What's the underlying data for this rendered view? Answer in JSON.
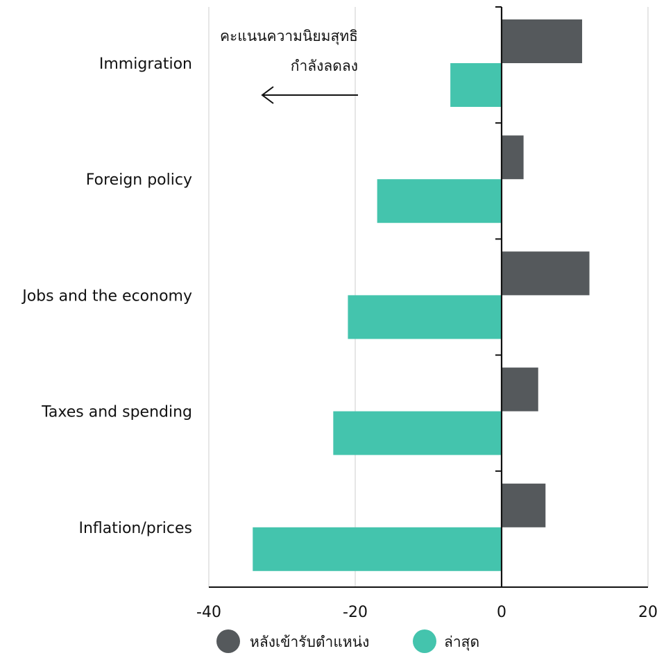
{
  "chart_data": {
    "type": "bar",
    "orientation": "horizontal",
    "categories": [
      "Immigration",
      "Foreign policy",
      "Jobs and the economy",
      "Taxes and spending",
      "Inflation/prices"
    ],
    "series": [
      {
        "name": "หลังเข้ารับตำแหน่ง",
        "values": [
          11,
          3,
          12,
          5,
          6
        ],
        "color": "#55595c"
      },
      {
        "name": "ล่าสุด",
        "values": [
          -7,
          -17,
          -21,
          -23,
          -34
        ],
        "color": "#44c4ad"
      }
    ],
    "xlim": [
      -40,
      20
    ],
    "xticks": [
      -40,
      -20,
      0,
      20
    ],
    "grid": "vertical",
    "legend_position": "bottom",
    "annotation": {
      "lines": [
        "คะแนนความนิยมสุทธิ",
        "กำลังลดลง"
      ]
    }
  }
}
